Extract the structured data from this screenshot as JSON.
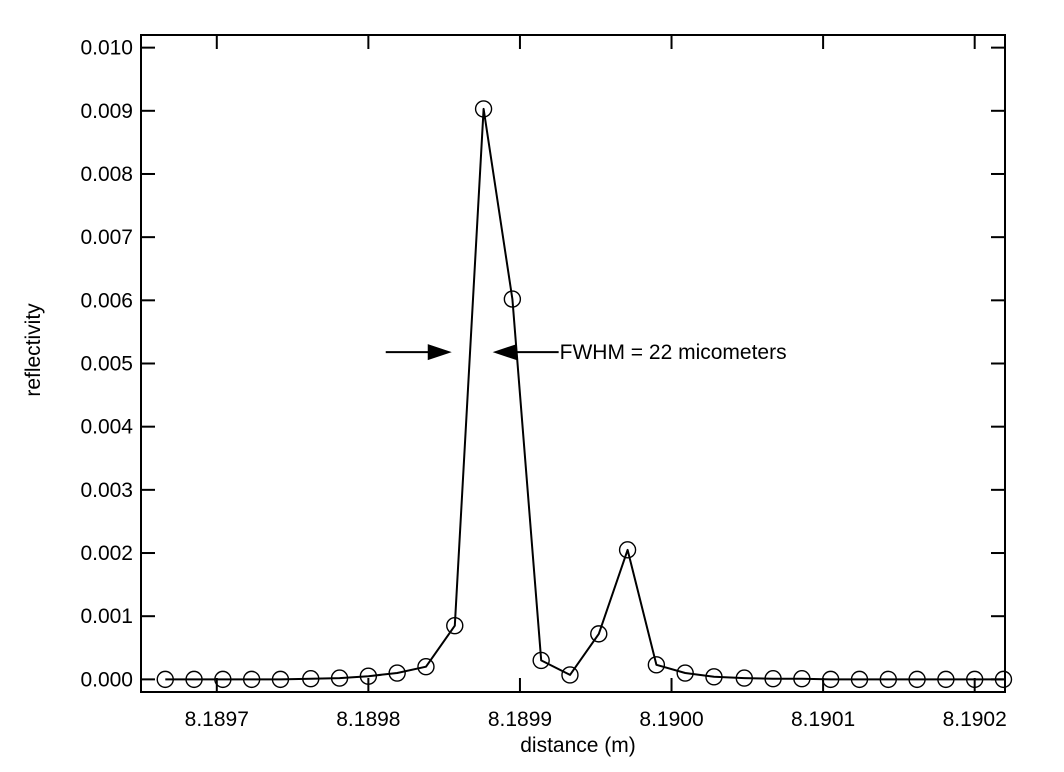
{
  "chart_data": {
    "type": "line",
    "title": "",
    "xlabel": "distance (m)",
    "ylabel": "reflectivity",
    "xlim": [
      8.18965,
      8.19022
    ],
    "ylim": [
      -0.0002,
      0.0102
    ],
    "grid": false,
    "legend": "none",
    "x_ticks": [
      8.1897,
      8.1898,
      8.1899,
      8.19,
      8.1901,
      8.1902
    ],
    "x_tick_labels": [
      "8.1897",
      "8.1898",
      "8.1899",
      "8.1900",
      "8.1901",
      "8.1902"
    ],
    "y_ticks": [
      0.0,
      0.001,
      0.002,
      0.003,
      0.004,
      0.005,
      0.006,
      0.007,
      0.008,
      0.009,
      0.01
    ],
    "y_tick_labels": [
      "0.000",
      "0.001",
      "0.002",
      "0.003",
      "0.004",
      "0.005",
      "0.006",
      "0.007",
      "0.008",
      "0.009",
      "0.010"
    ],
    "series": [
      {
        "name": "reflectivity",
        "marker": "open-circle",
        "x": [
          8.189666,
          8.189685,
          8.189704,
          8.189723,
          8.189742,
          8.189762,
          8.189781,
          8.1898,
          8.189819,
          8.189838,
          8.189857,
          8.189876,
          8.189895,
          8.189914,
          8.189933,
          8.189952,
          8.189971,
          8.18999,
          8.190009,
          8.190028,
          8.190048,
          8.190067,
          8.190086,
          8.190105,
          8.190124,
          8.190143,
          8.190162,
          8.190181,
          8.1902,
          8.190219
        ],
        "values": [
          0.0,
          0.0,
          0.0,
          0.0,
          0.0,
          1e-05,
          2e-05,
          5e-05,
          0.0001,
          0.0002,
          0.00085,
          0.00903,
          0.00602,
          0.0003,
          7e-05,
          0.00072,
          0.00205,
          0.00023,
          0.0001,
          4e-05,
          2e-05,
          1e-05,
          1e-05,
          0.0,
          0.0,
          0.0,
          0.0,
          0.0,
          0.0,
          0.0
        ]
      }
    ],
    "annotations": [
      {
        "text": "FWHM = 22 micometers",
        "y": 0.00518,
        "x_left": 8.189855,
        "x_right": 8.189882
      }
    ]
  }
}
